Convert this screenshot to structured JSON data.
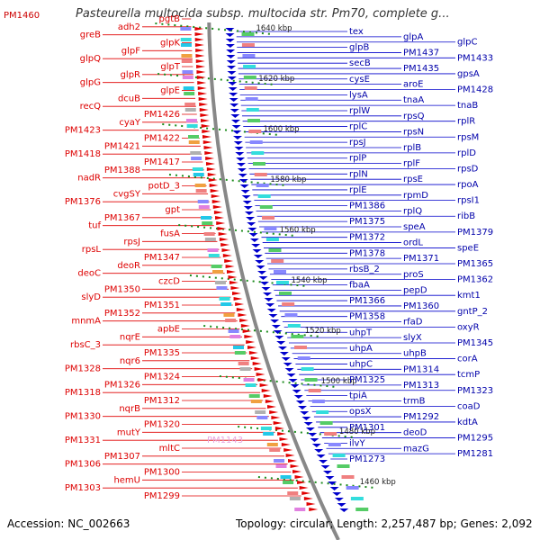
{
  "title": "Pasteurella multocida subsp. multocida str. Pm70, complete g...",
  "top_left_label": "PM1460",
  "footer": {
    "accession": "Accession: NC_002663",
    "topology": "Topology: circular; Length: 2,257,487 bp; Genes: 2,092"
  },
  "colors": {
    "forward": "#e00000",
    "reverse": "#0000cc",
    "backbone": "#888888",
    "tick": "#1a8a1a"
  },
  "kbp_ticks": [
    "1640 kbp",
    "1620 kbp",
    "1600 kbp",
    "1580 kbp",
    "1560 kbp",
    "1540 kbp",
    "1520 kbp",
    "1500 kbp",
    "1480 kbp",
    "1460 kbp"
  ],
  "left_genes": [
    "pgtB",
    "adh2",
    "greB",
    "glpK",
    "glpF",
    "glpQ",
    "glpT",
    "glpR",
    "glpG",
    "glpE",
    "dcuB",
    "recQ",
    "PM1426",
    "cyaY",
    "PM1423",
    "PM1422",
    "PM1421",
    "PM1418",
    "PM1417",
    "PM1388",
    "nadR",
    "potD_3",
    "cvgSY",
    "PM1376",
    "gpt",
    "PM1367",
    "tuf",
    "fusA",
    "rpsJ",
    "rpsL",
    "PM1347",
    "deoR",
    "deoC",
    "czcD",
    "PM1350",
    "slyD",
    "PM1351",
    "PM1352",
    "mnmA",
    "apbE",
    "nqrE",
    "rbsC_3",
    "PM1335",
    "nqr6",
    "PM1328",
    "PM1324",
    "PM1326",
    "PM1318",
    "PM1312",
    "nqrB",
    "PM1330",
    "PM1320",
    "mutY",
    "PM1331",
    "mltC",
    "PM1307",
    "PM1306",
    "PM1300",
    "hemU",
    "PM1303",
    "PM1299"
  ],
  "faint_gene": "PM1143",
  "right_genes": [
    "tex",
    "glpA",
    "glpC",
    "glpB",
    "PM1437",
    "PM1433",
    "secB",
    "PM1435",
    "gpsA",
    "cysE",
    "aroE",
    "PM1428",
    "lysA",
    "tnaA",
    "tnaB",
    "rplW",
    "rpsQ",
    "rplR",
    "rplC",
    "rpsN",
    "rpsM",
    "rpsJ",
    "rplB",
    "rplD",
    "rplP",
    "rplF",
    "rpsD",
    "rplN",
    "rpsE",
    "rpoA",
    "rplE",
    "rpmD",
    "rpsI1",
    "PM1386",
    "rplQ",
    "ribB",
    "PM1375",
    "speA",
    "PM1379",
    "PM1372",
    "ordL",
    "speE",
    "PM1378",
    "PM1371",
    "PM1365",
    "rbsB_2",
    "proS",
    "PM1362",
    "fbaA",
    "pepD",
    "kmt1",
    "PM1366",
    "PM1360",
    "gntP_2",
    "PM1358",
    "rfaD",
    "oxyR",
    "uhpT",
    "slyX",
    "PM1345",
    "uhpA",
    "uhpB",
    "corA",
    "uhpC",
    "PM1314",
    "tcmP",
    "PM1325",
    "PM1313",
    "PM1323",
    "tpiA",
    "trmB",
    "coaD",
    "opsX",
    "PM1292",
    "kdtA",
    "PM1301",
    "deoD",
    "PM1295",
    "ilvY",
    "mazG",
    "PM1281",
    "PM1273"
  ]
}
